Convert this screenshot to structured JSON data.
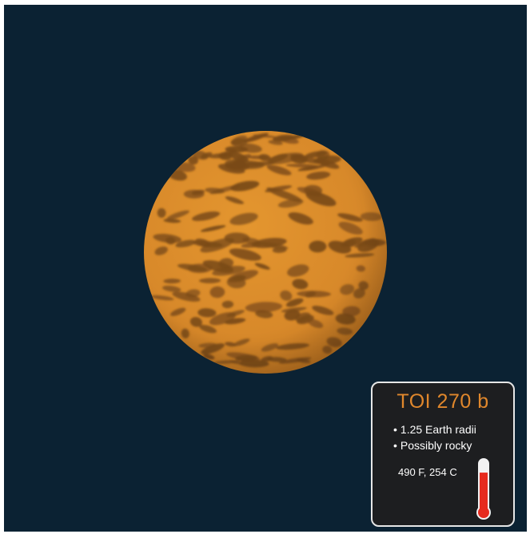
{
  "planet": {
    "name": "TOI 270 b",
    "facts": [
      "1.25 Earth radii",
      "Possibly rocky"
    ],
    "temperature_label": "490 F, 254 C",
    "temperature_level_percent": 78
  },
  "colors": {
    "space_background": "#0b2233",
    "planet_base": "#d8892a",
    "planet_patches": "#7a4a17",
    "title_accent": "#e0872c",
    "card_background": "#1d1e20",
    "thermometer_mercury": "#e62a1e"
  },
  "icons": {
    "planet": "planet-icon",
    "thermometer": "thermometer-icon"
  }
}
